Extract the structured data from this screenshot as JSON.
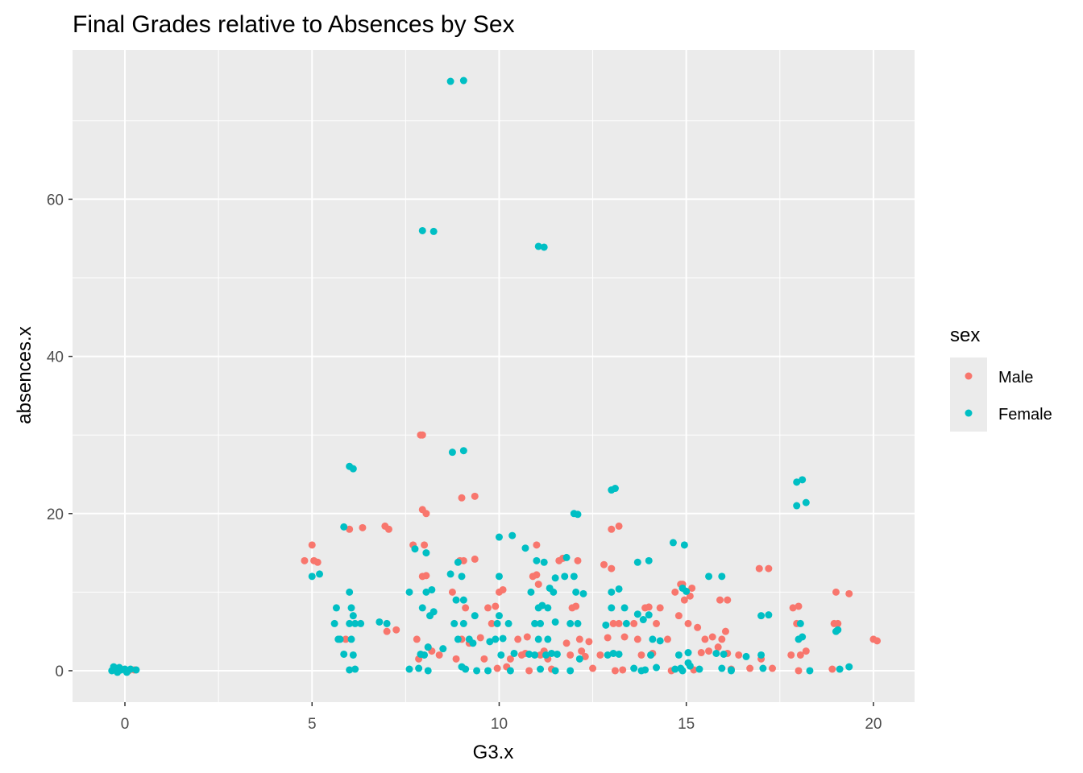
{
  "chart_data": {
    "type": "scatter",
    "title": "Final Grades relative to Absences by Sex",
    "xlabel": "G3.x",
    "ylabel": "absences.x",
    "xlim": [
      -1.4,
      21.1
    ],
    "ylim": [
      -4,
      79
    ],
    "xticks": [
      0,
      5,
      10,
      15,
      20
    ],
    "yticks": [
      0,
      20,
      40,
      60
    ],
    "grid": true,
    "legend": {
      "title": "sex",
      "position": "right"
    },
    "colors": {
      "Male": "#f8766d",
      "Female": "#00bfc4",
      "panel": "#ebebeb",
      "grid": "#ffffff"
    },
    "series": [
      {
        "name": "Male",
        "color": "#f8766d",
        "points": [
          [
            -0.1,
            0.2
          ],
          [
            0.1,
            0
          ],
          [
            0.25,
            0.1
          ],
          [
            4.8,
            14
          ],
          [
            5.0,
            16
          ],
          [
            5.05,
            14
          ],
          [
            5.15,
            13.8
          ],
          [
            5.9,
            4
          ],
          [
            6.0,
            18
          ],
          [
            6.35,
            18.2
          ],
          [
            6.95,
            18.4
          ],
          [
            7.05,
            18
          ],
          [
            7.0,
            5
          ],
          [
            7.25,
            5.2
          ],
          [
            7.7,
            16
          ],
          [
            7.8,
            4
          ],
          [
            7.85,
            1.5
          ],
          [
            7.9,
            30
          ],
          [
            7.95,
            30
          ],
          [
            7.95,
            12
          ],
          [
            8.05,
            12.1
          ],
          [
            7.95,
            20.5
          ],
          [
            8.05,
            20
          ],
          [
            8.0,
            16
          ],
          [
            8.1,
            3
          ],
          [
            8.2,
            2.5
          ],
          [
            8.4,
            2
          ],
          [
            8.75,
            10
          ],
          [
            8.85,
            1.5
          ],
          [
            9.0,
            22
          ],
          [
            9.35,
            22.2
          ],
          [
            8.95,
            14
          ],
          [
            9.05,
            14
          ],
          [
            9.35,
            14.2
          ],
          [
            9.0,
            4
          ],
          [
            9.1,
            8
          ],
          [
            9.2,
            3.5
          ],
          [
            9.5,
            4.2
          ],
          [
            9.6,
            1.5
          ],
          [
            9.7,
            8
          ],
          [
            9.8,
            6
          ],
          [
            9.9,
            8.2
          ],
          [
            9.95,
            0.3
          ],
          [
            10.0,
            10
          ],
          [
            10.1,
            10.3
          ],
          [
            10.2,
            0.5
          ],
          [
            10.3,
            1.5
          ],
          [
            10.5,
            4
          ],
          [
            10.6,
            2
          ],
          [
            10.7,
            2.2
          ],
          [
            10.75,
            4.3
          ],
          [
            10.8,
            0
          ],
          [
            10.9,
            12
          ],
          [
            11.0,
            12.2
          ],
          [
            11.0,
            16
          ],
          [
            11.05,
            11
          ],
          [
            11.1,
            2
          ],
          [
            11.2,
            2.5
          ],
          [
            11.3,
            1.5
          ],
          [
            11.4,
            0.2
          ],
          [
            11.6,
            14
          ],
          [
            11.7,
            14.3
          ],
          [
            11.8,
            3.5
          ],
          [
            11.9,
            2
          ],
          [
            11.95,
            8
          ],
          [
            12.05,
            8.2
          ],
          [
            12.1,
            14
          ],
          [
            12.15,
            4
          ],
          [
            12.2,
            2.5
          ],
          [
            12.3,
            1.8
          ],
          [
            12.4,
            3.7
          ],
          [
            12.5,
            0.3
          ],
          [
            12.7,
            2
          ],
          [
            12.8,
            13.5
          ],
          [
            12.9,
            4.2
          ],
          [
            13.0,
            13
          ],
          [
            13.0,
            18
          ],
          [
            13.2,
            18.4
          ],
          [
            13.05,
            6
          ],
          [
            13.1,
            0
          ],
          [
            13.2,
            6
          ],
          [
            13.3,
            0.1
          ],
          [
            13.35,
            4.3
          ],
          [
            13.6,
            6
          ],
          [
            13.7,
            4
          ],
          [
            13.8,
            2
          ],
          [
            13.9,
            8
          ],
          [
            14.0,
            8.1
          ],
          [
            14.05,
            2
          ],
          [
            14.1,
            2.2
          ],
          [
            14.2,
            6
          ],
          [
            14.3,
            8
          ],
          [
            14.5,
            4
          ],
          [
            14.6,
            0
          ],
          [
            14.7,
            10
          ],
          [
            14.8,
            7
          ],
          [
            14.85,
            11
          ],
          [
            14.9,
            11
          ],
          [
            14.95,
            9
          ],
          [
            15.1,
            9.5
          ],
          [
            15.05,
            6
          ],
          [
            15.15,
            10.5
          ],
          [
            15.2,
            0.1
          ],
          [
            15.3,
            5.5
          ],
          [
            15.4,
            2.3
          ],
          [
            15.5,
            4
          ],
          [
            15.6,
            2.5
          ],
          [
            15.7,
            4.3
          ],
          [
            15.85,
            3
          ],
          [
            15.9,
            9
          ],
          [
            16.1,
            9
          ],
          [
            15.95,
            4
          ],
          [
            16.05,
            5
          ],
          [
            16.1,
            2.2
          ],
          [
            16.2,
            0.2
          ],
          [
            16.4,
            2
          ],
          [
            16.7,
            0.3
          ],
          [
            16.95,
            13
          ],
          [
            17.2,
            13
          ],
          [
            17.0,
            1.5
          ],
          [
            17.3,
            0.3
          ],
          [
            17.8,
            2
          ],
          [
            17.85,
            8
          ],
          [
            18.0,
            8.2
          ],
          [
            17.95,
            6
          ],
          [
            18.0,
            0
          ],
          [
            18.05,
            2
          ],
          [
            18.2,
            2.5
          ],
          [
            18.9,
            0.2
          ],
          [
            18.95,
            6
          ],
          [
            19.05,
            6
          ],
          [
            19.0,
            10
          ],
          [
            19.35,
            9.8
          ],
          [
            20.0,
            4
          ],
          [
            20.1,
            3.8
          ]
        ]
      },
      {
        "name": "Female",
        "color": "#00bfc4",
        "points": [
          [
            -0.35,
            0
          ],
          [
            -0.3,
            0.5
          ],
          [
            -0.25,
            0.3
          ],
          [
            -0.2,
            -0.2
          ],
          [
            -0.15,
            0.4
          ],
          [
            -0.1,
            0.1
          ],
          [
            0.0,
            0.2
          ],
          [
            0.05,
            -0.2
          ],
          [
            0.15,
            0.2
          ],
          [
            0.3,
            0.1
          ],
          [
            5.0,
            12
          ],
          [
            5.2,
            12.3
          ],
          [
            5.6,
            6
          ],
          [
            5.65,
            8
          ],
          [
            5.7,
            4
          ],
          [
            5.75,
            4
          ],
          [
            5.85,
            18.3
          ],
          [
            5.85,
            2.1
          ],
          [
            6.0,
            26
          ],
          [
            6.1,
            25.7
          ],
          [
            6.0,
            10
          ],
          [
            6.05,
            8
          ],
          [
            6.0,
            6
          ],
          [
            6.1,
            7
          ],
          [
            6.15,
            6
          ],
          [
            6.05,
            4
          ],
          [
            6.1,
            2
          ],
          [
            6.0,
            0.1
          ],
          [
            6.15,
            0.2
          ],
          [
            6.3,
            6
          ],
          [
            6.8,
            6.2
          ],
          [
            7.0,
            6
          ],
          [
            7.6,
            10
          ],
          [
            7.6,
            0.2
          ],
          [
            7.75,
            15.5
          ],
          [
            7.85,
            0.3
          ],
          [
            7.9,
            2.1
          ],
          [
            7.95,
            56
          ],
          [
            8.25,
            55.9
          ],
          [
            7.95,
            8
          ],
          [
            8.05,
            10
          ],
          [
            8.05,
            15
          ],
          [
            8.0,
            2
          ],
          [
            8.1,
            3
          ],
          [
            8.1,
            0
          ],
          [
            8.15,
            7
          ],
          [
            8.2,
            10.3
          ],
          [
            8.25,
            7.5
          ],
          [
            8.5,
            2.8
          ],
          [
            8.7,
            75
          ],
          [
            9.05,
            75.1
          ],
          [
            8.75,
            27.8
          ],
          [
            9.05,
            28
          ],
          [
            8.7,
            12.3
          ],
          [
            8.8,
            6
          ],
          [
            8.85,
            9
          ],
          [
            8.9,
            13.8
          ],
          [
            8.9,
            4
          ],
          [
            9.0,
            12
          ],
          [
            9.05,
            6
          ],
          [
            9.05,
            9
          ],
          [
            9.0,
            0.5
          ],
          [
            9.1,
            0.2
          ],
          [
            9.2,
            4
          ],
          [
            9.35,
            7
          ],
          [
            9.3,
            3.5
          ],
          [
            9.4,
            0
          ],
          [
            9.7,
            0
          ],
          [
            9.75,
            3.7
          ],
          [
            9.9,
            4
          ],
          [
            9.95,
            6
          ],
          [
            10.0,
            12
          ],
          [
            10.0,
            17
          ],
          [
            10.0,
            7
          ],
          [
            10.05,
            2
          ],
          [
            10.1,
            4.1
          ],
          [
            10.25,
            6
          ],
          [
            10.3,
            0
          ],
          [
            10.35,
            17.2
          ],
          [
            10.4,
            2.2
          ],
          [
            10.7,
            15.6
          ],
          [
            10.8,
            2.1
          ],
          [
            10.85,
            10
          ],
          [
            10.95,
            2
          ],
          [
            10.95,
            6
          ],
          [
            11.0,
            14
          ],
          [
            11.05,
            54
          ],
          [
            11.2,
            53.9
          ],
          [
            11.05,
            8
          ],
          [
            11.05,
            4
          ],
          [
            11.1,
            0.2
          ],
          [
            11.1,
            6
          ],
          [
            11.15,
            8.3
          ],
          [
            11.2,
            13.8
          ],
          [
            11.25,
            2
          ],
          [
            11.3,
            4
          ],
          [
            11.3,
            8
          ],
          [
            11.35,
            10.5
          ],
          [
            11.4,
            2.2
          ],
          [
            11.45,
            10
          ],
          [
            11.5,
            11.8
          ],
          [
            11.5,
            0
          ],
          [
            11.5,
            6.2
          ],
          [
            11.55,
            2.1
          ],
          [
            11.75,
            12
          ],
          [
            11.8,
            14.4
          ],
          [
            11.9,
            0
          ],
          [
            11.9,
            6
          ],
          [
            12.0,
            12
          ],
          [
            12.0,
            20
          ],
          [
            12.1,
            19.9
          ],
          [
            12.05,
            10
          ],
          [
            12.1,
            6
          ],
          [
            12.15,
            1.5
          ],
          [
            12.25,
            9.8
          ],
          [
            12.85,
            5.8
          ],
          [
            12.9,
            2
          ],
          [
            13.0,
            23
          ],
          [
            13.1,
            23.2
          ],
          [
            13.0,
            10
          ],
          [
            13.0,
            8
          ],
          [
            13.05,
            2.2
          ],
          [
            13.2,
            10.4
          ],
          [
            13.2,
            2.1
          ],
          [
            13.35,
            8
          ],
          [
            13.4,
            6
          ],
          [
            13.6,
            0.3
          ],
          [
            13.7,
            13.8
          ],
          [
            13.7,
            7.2
          ],
          [
            13.8,
            0
          ],
          [
            13.85,
            6.5
          ],
          [
            13.9,
            0.1
          ],
          [
            14.0,
            14
          ],
          [
            14.0,
            7.1
          ],
          [
            14.05,
            2
          ],
          [
            14.1,
            4
          ],
          [
            14.2,
            0.4
          ],
          [
            14.3,
            3.8
          ],
          [
            14.65,
            16.3
          ],
          [
            14.7,
            0.2
          ],
          [
            14.8,
            2
          ],
          [
            14.85,
            0.3
          ],
          [
            14.9,
            0
          ],
          [
            14.9,
            10.5
          ],
          [
            14.95,
            16
          ],
          [
            15.0,
            10.1
          ],
          [
            15.05,
            1
          ],
          [
            15.05,
            2.3
          ],
          [
            15.1,
            0.6
          ],
          [
            15.35,
            0.2
          ],
          [
            15.6,
            12
          ],
          [
            15.8,
            2.2
          ],
          [
            15.95,
            12
          ],
          [
            15.95,
            0.3
          ],
          [
            16.0,
            2.1
          ],
          [
            16.2,
            0
          ],
          [
            16.2,
            0.1
          ],
          [
            16.6,
            1.8
          ],
          [
            17.0,
            7
          ],
          [
            17.0,
            2
          ],
          [
            17.05,
            0.3
          ],
          [
            17.2,
            7.1
          ],
          [
            17.95,
            24
          ],
          [
            18.1,
            24.3
          ],
          [
            17.95,
            21
          ],
          [
            18.2,
            21.4
          ],
          [
            18.0,
            4
          ],
          [
            18.05,
            6
          ],
          [
            18.1,
            4.3
          ],
          [
            18.3,
            0
          ],
          [
            19.0,
            5
          ],
          [
            19.1,
            0.2
          ],
          [
            19.35,
            0.5
          ],
          [
            19.05,
            5.2
          ]
        ]
      }
    ]
  }
}
